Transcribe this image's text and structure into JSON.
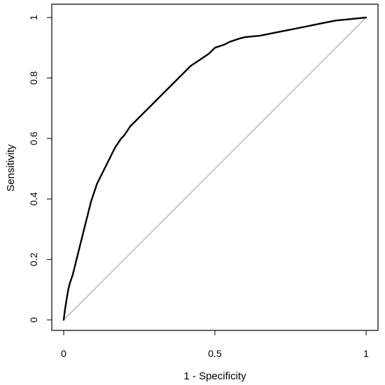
{
  "chart_data": {
    "type": "line",
    "title": "",
    "xlabel": "1 - Specificity",
    "ylabel": "Sensitivity",
    "xlim": [
      0,
      1
    ],
    "ylim": [
      0,
      1
    ],
    "xticks": [
      0,
      0.5,
      1
    ],
    "xtick_labels": [
      "0",
      "0.5",
      "1"
    ],
    "yticks": [
      0,
      0.2,
      0.4,
      0.6,
      0.8,
      1
    ],
    "ytick_labels": [
      "0",
      "0.2",
      "0.4",
      "0.6",
      "0.8",
      "1"
    ],
    "grid": false,
    "series": [
      {
        "role": "roc-curve",
        "color": "#000000",
        "x": [
          0.0,
          0.005,
          0.01,
          0.015,
          0.02,
          0.03,
          0.04,
          0.05,
          0.06,
          0.07,
          0.08,
          0.09,
          0.1,
          0.11,
          0.12,
          0.13,
          0.15,
          0.17,
          0.19,
          0.2,
          0.22,
          0.24,
          0.26,
          0.28,
          0.3,
          0.32,
          0.35,
          0.38,
          0.4,
          0.42,
          0.45,
          0.48,
          0.5,
          0.53,
          0.55,
          0.58,
          0.6,
          0.65,
          0.7,
          0.75,
          0.8,
          0.85,
          0.9,
          0.95,
          1.0
        ],
        "y": [
          0.0,
          0.04,
          0.07,
          0.1,
          0.12,
          0.15,
          0.19,
          0.23,
          0.27,
          0.31,
          0.35,
          0.39,
          0.42,
          0.45,
          0.47,
          0.49,
          0.53,
          0.57,
          0.6,
          0.61,
          0.64,
          0.66,
          0.68,
          0.7,
          0.72,
          0.74,
          0.77,
          0.8,
          0.82,
          0.84,
          0.86,
          0.88,
          0.9,
          0.91,
          0.92,
          0.93,
          0.935,
          0.94,
          0.95,
          0.96,
          0.97,
          0.98,
          0.99,
          0.995,
          1.0
        ]
      },
      {
        "role": "reference-diagonal",
        "color": "#9a9a9a",
        "x": [
          0,
          1
        ],
        "y": [
          0,
          1
        ]
      }
    ]
  }
}
